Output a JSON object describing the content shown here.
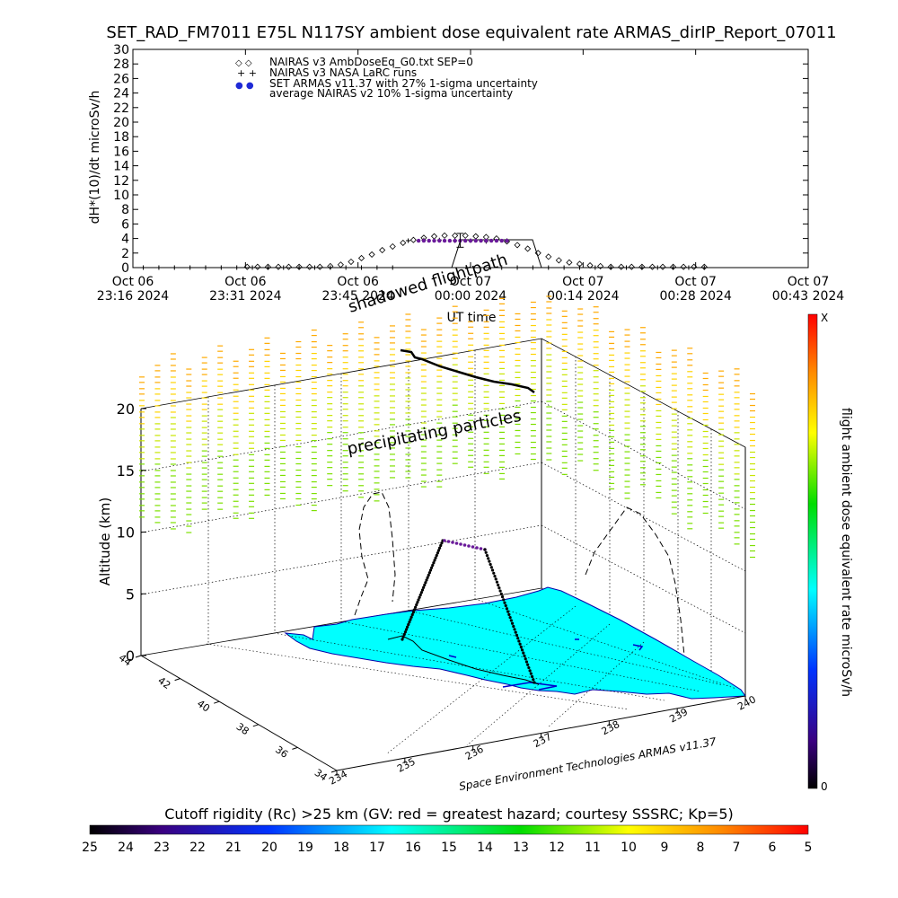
{
  "title": "SET_RAD_FM7011  E75L N117SY ambient dose equivalent rate ARMAS_dirIP_Report_07011",
  "chart_data": [
    {
      "type": "scatter",
      "ylabel": "dH*(10)/dt microSv/h",
      "xlabel": "UT time",
      "ylim": [
        0,
        30
      ],
      "yticks": [
        0,
        2,
        4,
        6,
        8,
        10,
        12,
        14,
        16,
        18,
        20,
        22,
        24,
        26,
        28,
        30
      ],
      "xticks": [
        {
          "l1": "Oct 06",
          "l2": "23:16 2024"
        },
        {
          "l1": "Oct 06",
          "l2": "23:31 2024"
        },
        {
          "l1": "Oct 06",
          "l2": "23:45 2024"
        },
        {
          "l1": "Oct 07",
          "l2": "00:00 2024"
        },
        {
          "l1": "Oct 07",
          "l2": "00:14 2024"
        },
        {
          "l1": "Oct 07",
          "l2": "00:28 2024"
        },
        {
          "l1": "Oct 07",
          "l2": "00:43 2024"
        }
      ],
      "legend": [
        {
          "symbol": "◇ ◇",
          "label": "NAIRAS v3 AmbDoseEq_G0.txt SEP=0"
        },
        {
          "symbol": "+ +",
          "label": "NAIRAS v3 NASA LaRC runs"
        },
        {
          "symbol": "● ●",
          "label": "SET ARMAS v11.37 with 27% 1-sigma uncertainty",
          "color": "#1f2ad6"
        },
        {
          "symbol": "",
          "label": "average NAIRAS v2 10% 1-sigma uncertainty"
        }
      ],
      "legend_position": "top-left",
      "series": [
        {
          "name": "NAIRAS v3 AmbDoseEq_G0.txt SEP=0",
          "marker": "diamond",
          "x_minutes": [
            22,
            24,
            26,
            28,
            30,
            32,
            34,
            36,
            38,
            40,
            42,
            44,
            46,
            48,
            50,
            52,
            54,
            56,
            58,
            60,
            62,
            64,
            66,
            68,
            70,
            72,
            74,
            76,
            78,
            80,
            82,
            84,
            86,
            88,
            90,
            92,
            94,
            96,
            98,
            100,
            102,
            104,
            106,
            108,
            110
          ],
          "values": [
            0.1,
            0.1,
            0.1,
            0.1,
            0.1,
            0.1,
            0.1,
            0.1,
            0.2,
            0.4,
            0.8,
            1.3,
            1.8,
            2.4,
            2.9,
            3.4,
            3.8,
            4.1,
            4.3,
            4.4,
            4.4,
            4.4,
            4.3,
            4.2,
            4.0,
            3.6,
            3.1,
            2.6,
            2.0,
            1.5,
            1.0,
            0.7,
            0.5,
            0.3,
            0.2,
            0.1,
            0.1,
            0.1,
            0.1,
            0.1,
            0.1,
            0.1,
            0.1,
            0.1,
            0.1
          ]
        },
        {
          "name": "NAIRAS v3 NASA LaRC runs",
          "marker": "plus",
          "x_minutes": [
            2,
            5,
            8,
            11,
            14,
            17,
            20,
            23,
            26,
            29,
            32,
            35,
            38,
            41,
            44,
            47,
            50,
            53,
            56,
            59,
            62,
            65,
            68,
            71,
            74,
            77,
            80,
            83,
            86,
            89,
            92,
            95,
            98,
            101,
            104,
            107,
            110
          ],
          "values": [
            0,
            0,
            0,
            0,
            0,
            0,
            0,
            0,
            0,
            0,
            0,
            0,
            0,
            0,
            0,
            0,
            0,
            3.7,
            3.8,
            3.8,
            3.7,
            3.7,
            3.6,
            0,
            0,
            0,
            0,
            0,
            0,
            0,
            0,
            0,
            0,
            0,
            0,
            0,
            0
          ]
        },
        {
          "name": "SET ARMAS v11.37 with 27% 1-sigma uncertainty",
          "marker": "dot",
          "color": "#6a1a9a",
          "x_minutes": [
            55,
            56,
            57,
            58,
            59,
            60,
            61,
            62,
            63,
            64,
            65,
            66,
            67,
            68,
            69,
            70,
            71,
            72
          ],
          "values": [
            3.7,
            3.7,
            3.7,
            3.7,
            3.7,
            3.7,
            3.7,
            3.7,
            3.7,
            3.7,
            3.7,
            3.7,
            3.7,
            3.7,
            3.7,
            3.7,
            3.7,
            3.7
          ]
        }
      ],
      "errorbar": {
        "x_minutes": 63,
        "center": 3.7,
        "low": 2.8,
        "high": 4.7
      },
      "grid": false
    },
    {
      "type": "3d-flight-path",
      "zlabel": "Altitude (km)",
      "zticks": [
        0,
        5,
        10,
        15,
        20
      ],
      "y_lat_ticks": [
        34,
        36,
        38,
        40,
        42,
        44
      ],
      "x_lon_ticks": [
        234,
        235,
        236,
        237,
        238,
        239,
        240
      ],
      "annotations": [
        "shadowed flightpath",
        "precipitating particles"
      ],
      "credit": "Space Environment Technologies ARMAS v11.37",
      "grid": true
    },
    {
      "type": "colorbar",
      "orientation": "vertical",
      "label": "flight ambient dose equivalent rate microSv/h",
      "top_label": "X",
      "bottom_label": "0"
    },
    {
      "type": "colorbar",
      "orientation": "horizontal",
      "label": "Cutoff rigidity (Rc) >25 km (GV: red = greatest hazard; courtesy SSSRC; Kp=5)",
      "ticks": [
        25,
        24,
        23,
        22,
        21,
        20,
        19,
        18,
        17,
        16,
        15,
        14,
        13,
        12,
        11,
        10,
        9,
        8,
        7,
        6,
        5
      ]
    }
  ],
  "colors": {
    "map_fill": "#00ffff",
    "flight_dots": "#6a1a9a",
    "armas_legend": "#1f2ad6"
  }
}
